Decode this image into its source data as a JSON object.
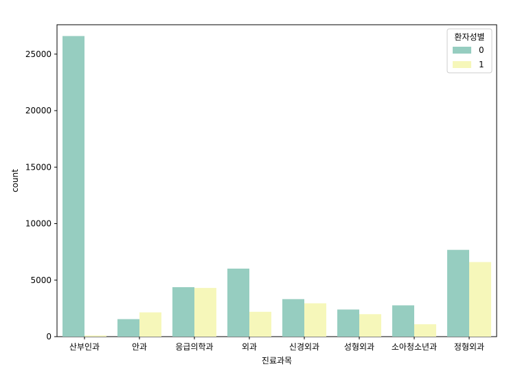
{
  "chart_data": {
    "type": "bar",
    "xlabel": "진료과목",
    "ylabel": "count",
    "ylim": [
      0,
      27600
    ],
    "yticks": [
      0,
      5000,
      10000,
      15000,
      20000,
      25000
    ],
    "categories": [
      "산부인과",
      "안과",
      "응급의학과",
      "외과",
      "신경외과",
      "성형외과",
      "소아청소년과",
      "정형외과"
    ],
    "legend": {
      "title": "환자성별",
      "position": "top-right"
    },
    "series": [
      {
        "name": "0",
        "color": "#96cdc0",
        "values": [
          26600,
          1550,
          4380,
          6020,
          3320,
          2400,
          2770,
          7680
        ]
      },
      {
        "name": "1",
        "color": "#f6f7ba",
        "values": [
          100,
          2150,
          4310,
          2200,
          2950,
          1990,
          1100,
          6600
        ]
      }
    ]
  }
}
